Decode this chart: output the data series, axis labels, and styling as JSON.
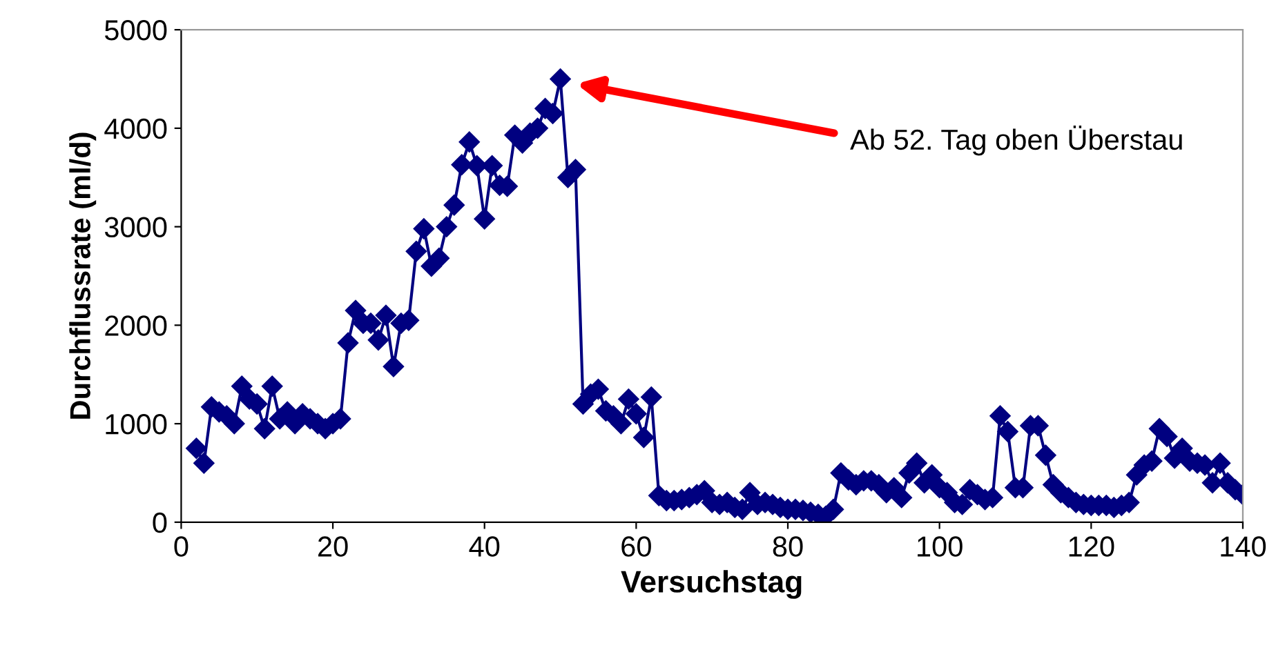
{
  "chart_data": {
    "type": "line",
    "xlabel": "Versuchstag",
    "ylabel": "Durchflussrate (ml/d)",
    "x": [
      2,
      3,
      4,
      5,
      6,
      7,
      8,
      9,
      10,
      11,
      12,
      13,
      14,
      15,
      16,
      17,
      18,
      19,
      20,
      21,
      22,
      23,
      24,
      25,
      26,
      27,
      28,
      29,
      30,
      31,
      32,
      33,
      34,
      35,
      36,
      37,
      38,
      39,
      40,
      41,
      42,
      43,
      44,
      45,
      46,
      47,
      48,
      49,
      50,
      51,
      52,
      53,
      54,
      55,
      56,
      57,
      58,
      59,
      60,
      61,
      62,
      63,
      64,
      65,
      66,
      67,
      68,
      69,
      70,
      71,
      72,
      73,
      74,
      75,
      76,
      77,
      78,
      79,
      80,
      81,
      82,
      83,
      84,
      85,
      86,
      87,
      88,
      89,
      90,
      91,
      92,
      93,
      94,
      95,
      96,
      97,
      98,
      99,
      100,
      101,
      102,
      103,
      104,
      105,
      106,
      107,
      108,
      109,
      110,
      111,
      112,
      113,
      114,
      115,
      116,
      117,
      118,
      119,
      120,
      121,
      122,
      123,
      124,
      125,
      126,
      127,
      128,
      129,
      130,
      131,
      132,
      133,
      134,
      135,
      136,
      137,
      138,
      139,
      140
    ],
    "series": [
      {
        "color": "#000080",
        "values": [
          750,
          600,
          1170,
          1120,
          1080,
          1000,
          1380,
          1250,
          1200,
          950,
          1380,
          1050,
          1120,
          1000,
          1100,
          1050,
          1000,
          950,
          1000,
          1050,
          1820,
          2150,
          2020,
          2020,
          1850,
          2100,
          1580,
          2020,
          2050,
          2750,
          2980,
          2600,
          2680,
          3000,
          3220,
          3630,
          3860,
          3620,
          3080,
          3620,
          3420,
          3410,
          3930,
          3850,
          3950,
          4000,
          4200,
          4150,
          4500,
          3500,
          3580,
          1200,
          1300,
          1350,
          1130,
          1080,
          1000,
          1250,
          1100,
          860,
          1270,
          270,
          220,
          220,
          230,
          250,
          280,
          320,
          200,
          180,
          200,
          150,
          130,
          300,
          180,
          200,
          180,
          150,
          130,
          130,
          120,
          100,
          80,
          60,
          130,
          500,
          430,
          380,
          420,
          420,
          380,
          300,
          350,
          250,
          500,
          600,
          400,
          480,
          350,
          300,
          200,
          180,
          330,
          280,
          230,
          250,
          1080,
          920,
          350,
          350,
          980,
          980,
          680,
          380,
          300,
          250,
          200,
          180,
          170,
          170,
          170,
          150,
          170,
          200,
          480,
          580,
          620,
          950,
          870,
          650,
          750,
          620,
          600,
          580,
          400,
          600,
          400,
          330,
          280
        ]
      }
    ],
    "xlim": [
      0,
      140
    ],
    "xticks": [
      0,
      20,
      40,
      60,
      80,
      100,
      120,
      140
    ],
    "ylim": [
      0,
      5000
    ],
    "yticks": [
      0,
      1000,
      2000,
      3000,
      4000,
      5000
    ],
    "marker": "diamond",
    "line_style": "solid",
    "grid": false,
    "annotations": [
      "Ab 52. Tag oben Überstau"
    ]
  }
}
